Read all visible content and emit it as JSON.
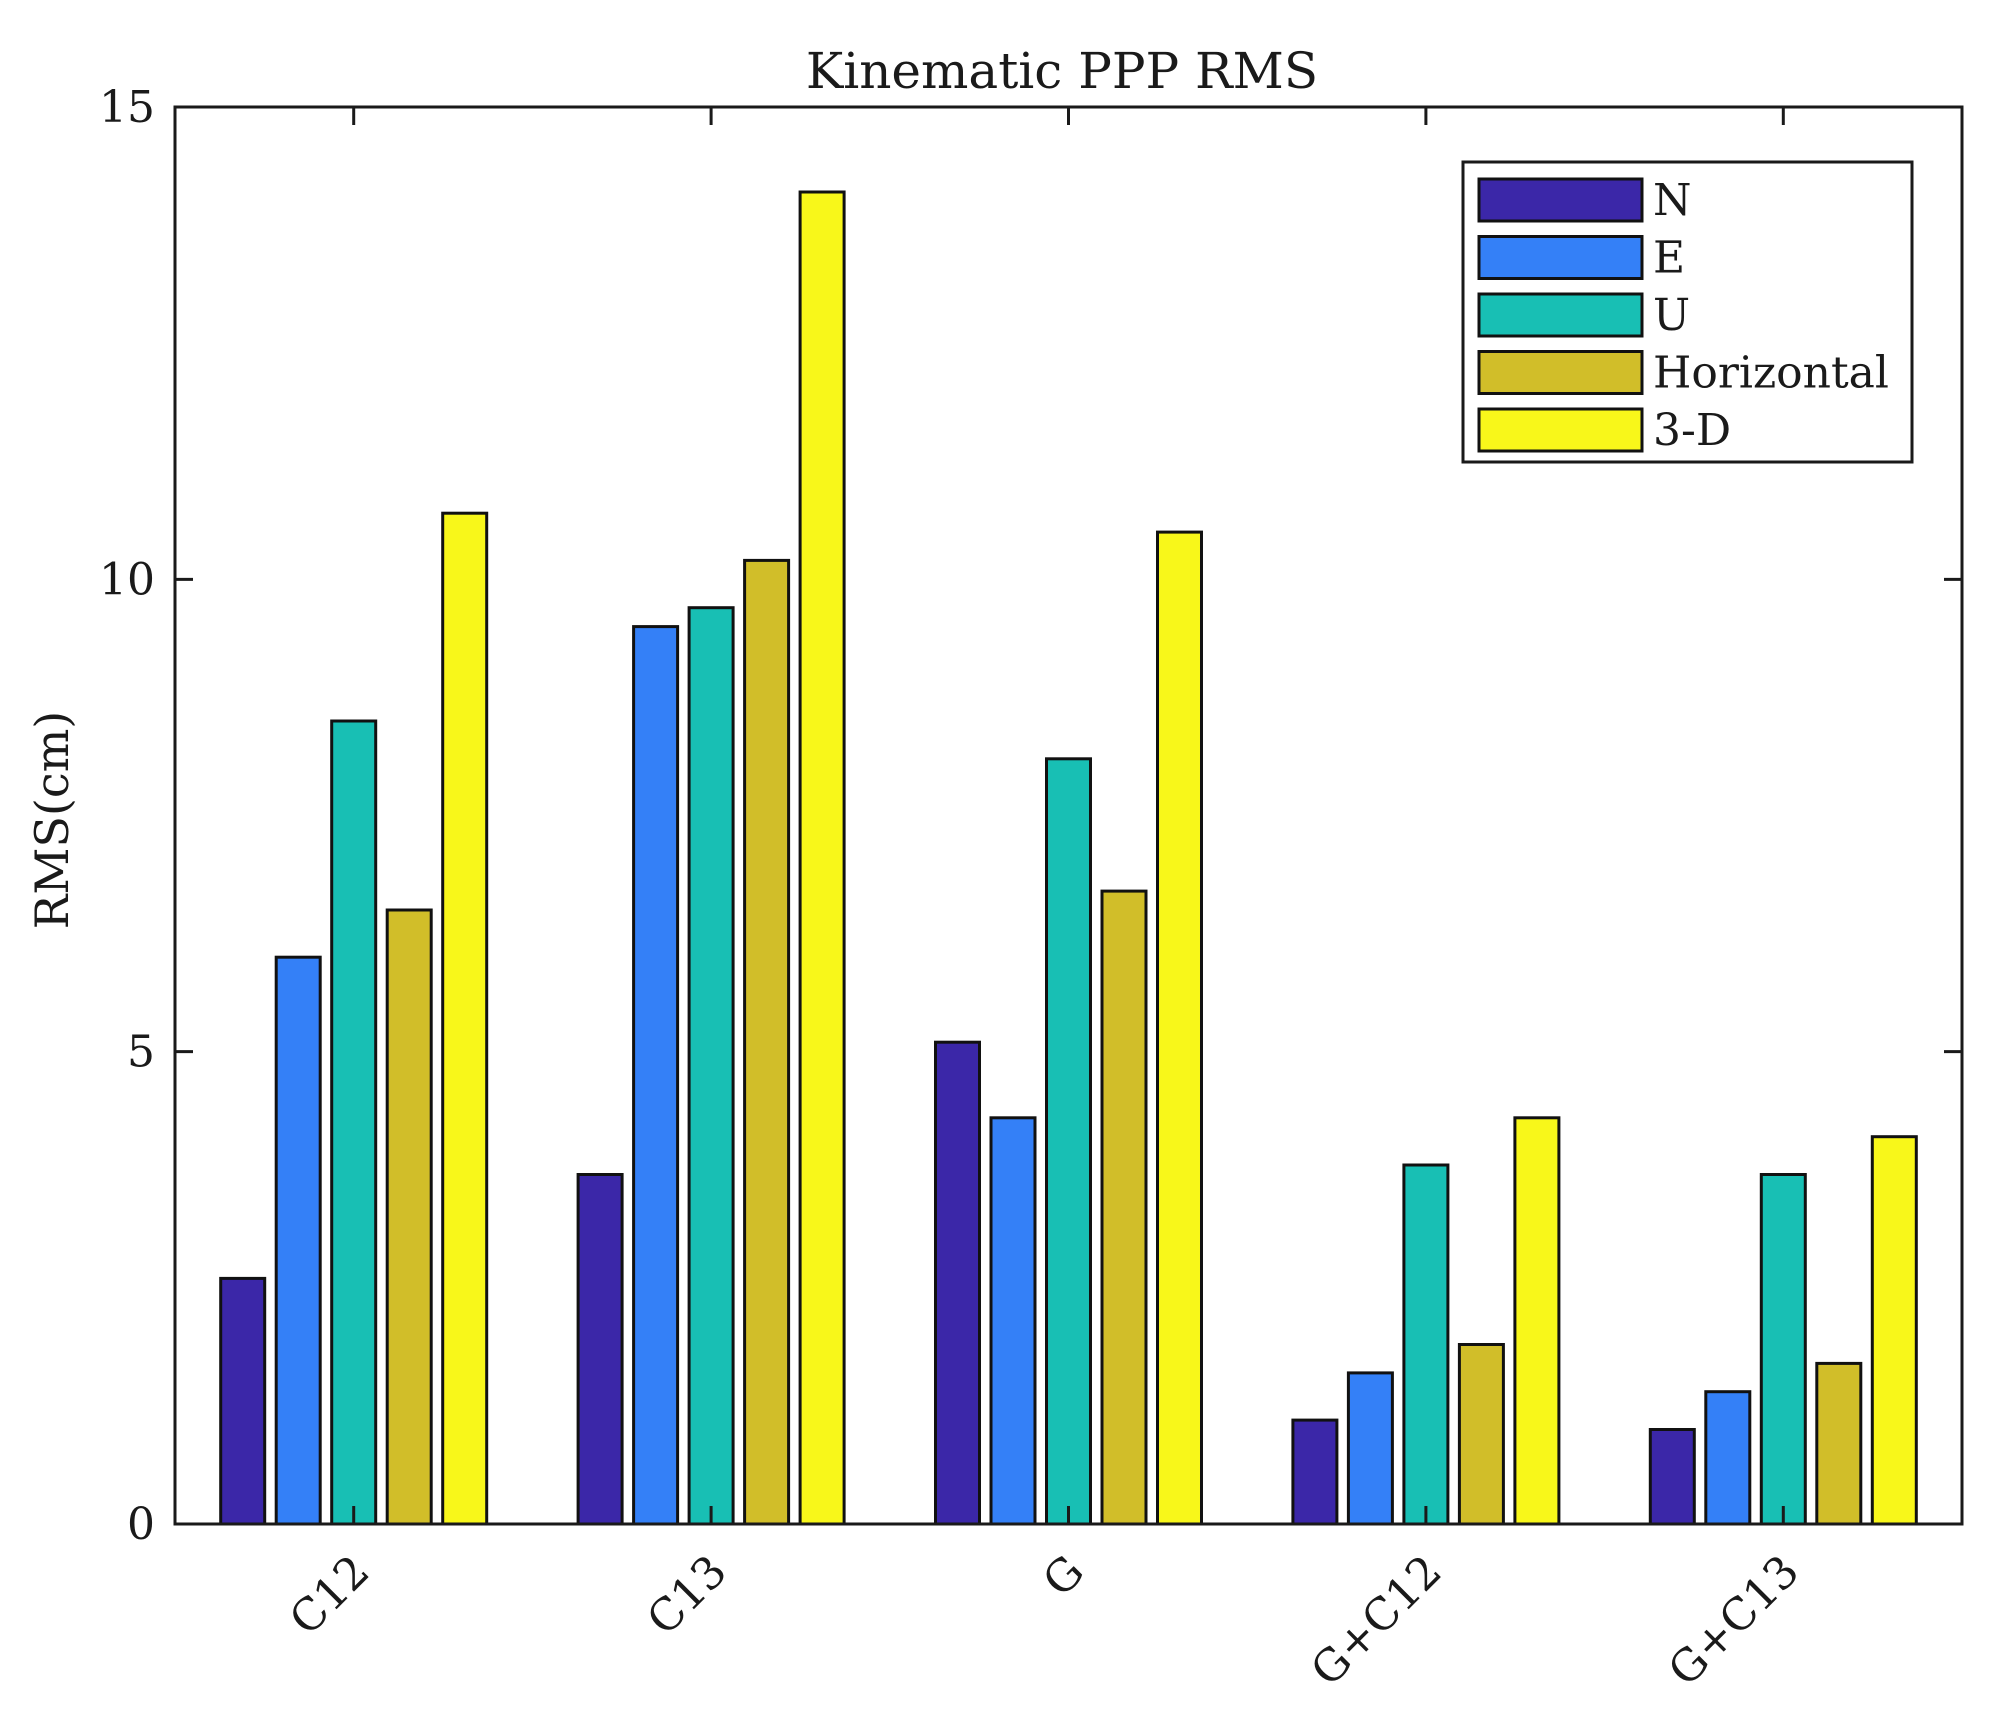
{
  "chart_data": {
    "type": "bar",
    "title": "Kinematic PPP RMS",
    "xlabel": "",
    "ylabel": "RMS(cm)",
    "ylim": [
      0,
      15
    ],
    "yticks": [
      0,
      5,
      10,
      15
    ],
    "categories": [
      "C12",
      "C13",
      "G",
      "G+C12",
      "G+C13"
    ],
    "series": [
      {
        "name": "N",
        "color": "#3b27a8",
        "values": [
          2.6,
          3.7,
          5.1,
          1.1,
          1.0
        ]
      },
      {
        "name": "E",
        "color": "#3480f7",
        "values": [
          6.0,
          9.5,
          4.3,
          1.6,
          1.4
        ]
      },
      {
        "name": "U",
        "color": "#18bfb4",
        "values": [
          8.5,
          9.7,
          8.1,
          3.8,
          3.7
        ]
      },
      {
        "name": "Horizontal",
        "color": "#d1be29",
        "values": [
          6.5,
          10.2,
          6.7,
          1.9,
          1.7
        ]
      },
      {
        "name": "3-D",
        "color": "#f8f71a",
        "values": [
          10.7,
          14.1,
          10.5,
          4.3,
          4.1
        ]
      }
    ],
    "legend_position": "top-right",
    "grid": false
  }
}
